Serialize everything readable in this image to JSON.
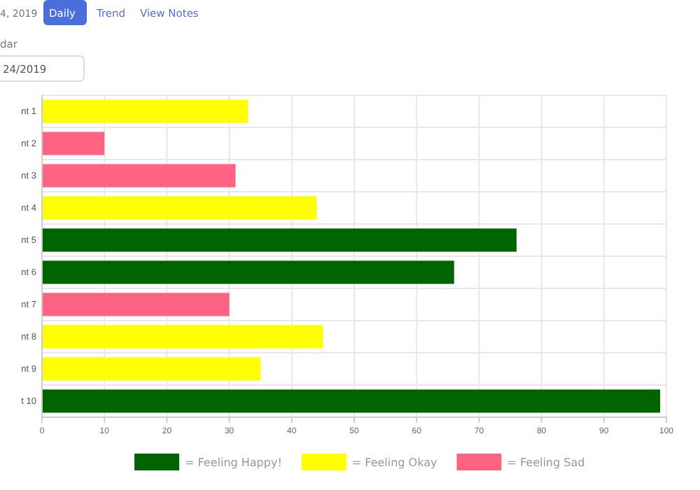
{
  "chart_data": {
    "type": "bar",
    "orientation": "horizontal",
    "categories": [
      "nt 1",
      "nt 2",
      "nt 3",
      "nt 4",
      "nt 5",
      "nt 6",
      "nt 7",
      "nt 8",
      "nt 9",
      "t 10"
    ],
    "series": [
      {
        "name": "= Feeling Happy!",
        "color": "#006400",
        "values": [
          null,
          null,
          null,
          null,
          76,
          66,
          null,
          null,
          null,
          99
        ]
      },
      {
        "name": "= Feeling Okay",
        "color": "#ffff00",
        "values": [
          33,
          null,
          null,
          44,
          null,
          null,
          null,
          45,
          35,
          null
        ]
      },
      {
        "name": "= Feeling Sad",
        "color": "#ff6384",
        "values": [
          null,
          10,
          31,
          null,
          null,
          null,
          30,
          null,
          null,
          null
        ]
      }
    ],
    "xlim": [
      0,
      100
    ],
    "xticks": [
      0,
      10,
      20,
      30,
      40,
      50,
      60,
      70,
      80,
      90,
      100
    ],
    "grid": true,
    "legend": "bottom",
    "annotations": [
      "4, 2019",
      "Daily",
      "Trend",
      "View Notes",
      "dar",
      "24/2019"
    ]
  }
}
